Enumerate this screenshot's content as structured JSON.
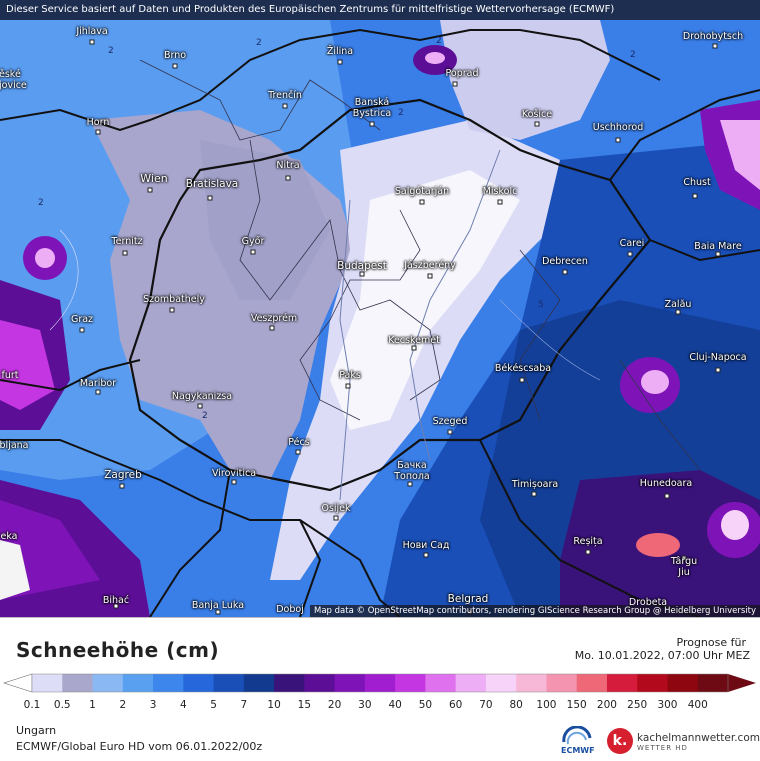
{
  "header": {
    "service_note": "Dieser Service basiert auf Daten und Produkten des Europäischen Zentrums für mittelfristige Wettervorhersage (ECMWF)"
  },
  "map": {
    "attribution": "Map data © OpenStreetMap contributors, rendering GIScience Research Group @ Heidelberg University",
    "cities": [
      {
        "name": "Jihlava"
      },
      {
        "name": "Brno"
      },
      {
        "name": "Žilina"
      },
      {
        "name": "Poprad"
      },
      {
        "name": "Drohobytsch"
      },
      {
        "name": "Horn"
      },
      {
        "name": "Trenčín"
      },
      {
        "name": "Banská Bystrica"
      },
      {
        "name": "Košice"
      },
      {
        "name": "Uschhorod"
      },
      {
        "name": "Nitra"
      },
      {
        "name": "Wien"
      },
      {
        "name": "Bratislava"
      },
      {
        "name": "Salgótarján"
      },
      {
        "name": "Miskolc"
      },
      {
        "name": "Chust"
      },
      {
        "name": "Ternitz"
      },
      {
        "name": "Győr"
      },
      {
        "name": "Carei"
      },
      {
        "name": "Baia Mare"
      },
      {
        "name": "Budapest"
      },
      {
        "name": "Jászberény"
      },
      {
        "name": "Debrecen"
      },
      {
        "name": "Szombathely"
      },
      {
        "name": "Graz"
      },
      {
        "name": "Veszprém"
      },
      {
        "name": "Zalău"
      },
      {
        "name": "Kecskemét"
      },
      {
        "name": "Cluj-Napoca"
      },
      {
        "name": "Maribor"
      },
      {
        "name": "Paks"
      },
      {
        "name": "Békéscsaba"
      },
      {
        "name": "Nagykanizsa"
      },
      {
        "name": "Szeged"
      },
      {
        "name": "Pécs"
      },
      {
        "name": "Бачка Топола"
      },
      {
        "name": "Zagreb"
      },
      {
        "name": "Virovitica"
      },
      {
        "name": "Timișoara"
      },
      {
        "name": "Hunedoara"
      },
      {
        "name": "Osijek"
      },
      {
        "name": "Нови Сад"
      },
      {
        "name": "Reșița"
      },
      {
        "name": "Târgu Jiu"
      },
      {
        "name": "Bihać"
      },
      {
        "name": "Banja Luka"
      },
      {
        "name": "Doboj"
      },
      {
        "name": "Belgrad"
      },
      {
        "name": "Drobeta"
      },
      {
        "name": "furt"
      },
      {
        "name": "bljana"
      },
      {
        "name": "eka"
      },
      {
        "name": "ěské jovice"
      }
    ],
    "contour_labels": [
      "2",
      "2",
      "2",
      "2",
      "2",
      "2",
      "2",
      "5"
    ]
  },
  "legend": {
    "title": "Schneehöhe (cm)",
    "forecast_label": "Prognose für",
    "forecast_time": "Mo. 10.01.2022, 07:00 Uhr MEZ",
    "region": "Ungarn",
    "model_run": "ECMWF/Global Euro HD vom  06.01.2022/00z",
    "ticks": [
      "0.1",
      "0.5",
      "1",
      "2",
      "3",
      "4",
      "5",
      "7",
      "10",
      "15",
      "20",
      "30",
      "40",
      "50",
      "60",
      "70",
      "80",
      "100",
      "150",
      "200",
      "250",
      "300",
      "400"
    ],
    "colors": [
      "#ddddf7",
      "#a9a8cc",
      "#8ab8f2",
      "#59a0f0",
      "#3d86ec",
      "#2668dc",
      "#1a4fb8",
      "#123a8e",
      "#3a137a",
      "#5c0f96",
      "#7e14b8",
      "#a01ed0",
      "#c436e2",
      "#df70ee",
      "#eeaef5",
      "#f7d2f9",
      "#f7b8d8",
      "#f594b0",
      "#ee6878",
      "#d61c3c",
      "#b20a1c",
      "#8e0610",
      "#6e0a14"
    ],
    "ecmwf_logo_text": "ECMWF",
    "brand_name": "kachelmannwetter.com",
    "brand_sub": "WETTER HD",
    "brand_letter": "k."
  }
}
